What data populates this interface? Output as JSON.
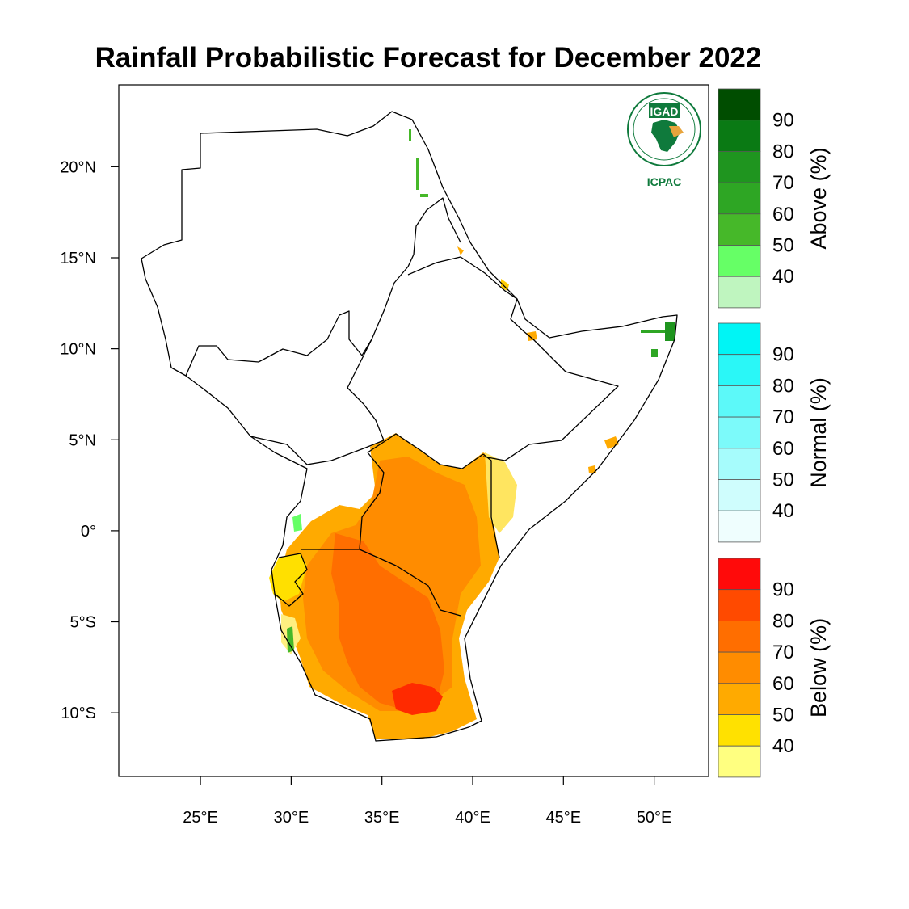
{
  "title": "Rainfall Probabilistic Forecast for December 2022",
  "logo": {
    "top_text": "IGAD",
    "bottom_text": "ICPAC",
    "color": "#0f7a3c"
  },
  "map": {
    "lon_range": [
      20.5,
      53
    ],
    "lat_range": [
      -13.5,
      24.5
    ],
    "x_ticks": [
      {
        "value": 25,
        "label": "25°E"
      },
      {
        "value": 30,
        "label": "30°E"
      },
      {
        "value": 35,
        "label": "35°E"
      },
      {
        "value": 40,
        "label": "40°E"
      },
      {
        "value": 45,
        "label": "45°E"
      },
      {
        "value": 50,
        "label": "50°E"
      }
    ],
    "y_ticks": [
      {
        "value": 20,
        "label": "20°N"
      },
      {
        "value": 15,
        "label": "15°N"
      },
      {
        "value": 10,
        "label": "10°N"
      },
      {
        "value": 5,
        "label": "5°N"
      },
      {
        "value": 0,
        "label": "0°"
      },
      {
        "value": -5,
        "label": "5°S"
      },
      {
        "value": -10,
        "label": "10°S"
      }
    ]
  },
  "colorbars": [
    {
      "title": "Above (%)",
      "labels": [
        "90",
        "80",
        "70",
        "60",
        "50",
        "40"
      ],
      "colors": [
        "#004d00",
        "#0a7a14",
        "#1f951f",
        "#2ea624",
        "#46b829",
        "#66ff66",
        "#bff5bf"
      ]
    },
    {
      "title": "Normal (%)",
      "labels": [
        "90",
        "80",
        "70",
        "60",
        "50",
        "40"
      ],
      "colors": [
        "#00f5f5",
        "#2af7f7",
        "#5cf9f9",
        "#7cfafa",
        "#a6fcfc",
        "#cffdfd",
        "#effefe"
      ]
    },
    {
      "title": "Below (%)",
      "labels": [
        "90",
        "80",
        "70",
        "60",
        "50",
        "40"
      ],
      "colors": [
        "#ff0a0a",
        "#ff4a00",
        "#ff6e00",
        "#ff8c00",
        "#ffaa00",
        "#ffe100",
        "#ffff80"
      ]
    }
  ]
}
